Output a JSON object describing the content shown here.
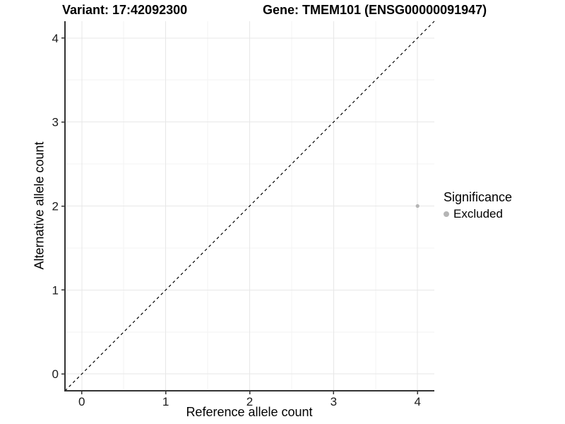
{
  "title": {
    "variant": "Variant: 17:42092300",
    "gene": "Gene: TMEM101 (ENSG00000091947)"
  },
  "axes": {
    "x_label": "Reference allele count",
    "y_label": "Alternative allele count"
  },
  "legend": {
    "title": "Significance",
    "items": [
      {
        "label": "Excluded",
        "color": "#b5b5b5"
      }
    ]
  },
  "chart_data": {
    "type": "scatter",
    "title": "Variant: 17:42092300    Gene: TMEM101 (ENSG00000091947)",
    "xlabel": "Reference allele count",
    "ylabel": "Alternative allele count",
    "points": [
      {
        "x": 4,
        "y": 2,
        "series": "Excluded"
      }
    ],
    "series": [
      {
        "name": "Excluded",
        "color": "#b5b5b5"
      }
    ],
    "x_ticks": [
      0,
      1,
      2,
      3,
      4
    ],
    "y_ticks": [
      0,
      1,
      2,
      3,
      4
    ],
    "xlim": [
      -0.2,
      4.2
    ],
    "ylim": [
      -0.2,
      4.2
    ],
    "identity_line": {
      "style": "dashed",
      "intercept": 0,
      "slope": 1,
      "color": "#000000"
    },
    "grid": {
      "major": true,
      "minor": true,
      "background": "#ffffff"
    },
    "legend_position": "right",
    "colors": {
      "point": "#b5b5b5",
      "major_grid": "#e7e7e7",
      "minor_grid": "#f3f3f3",
      "axis_line": "#333333",
      "tick_text": "#1a1a1a"
    }
  }
}
